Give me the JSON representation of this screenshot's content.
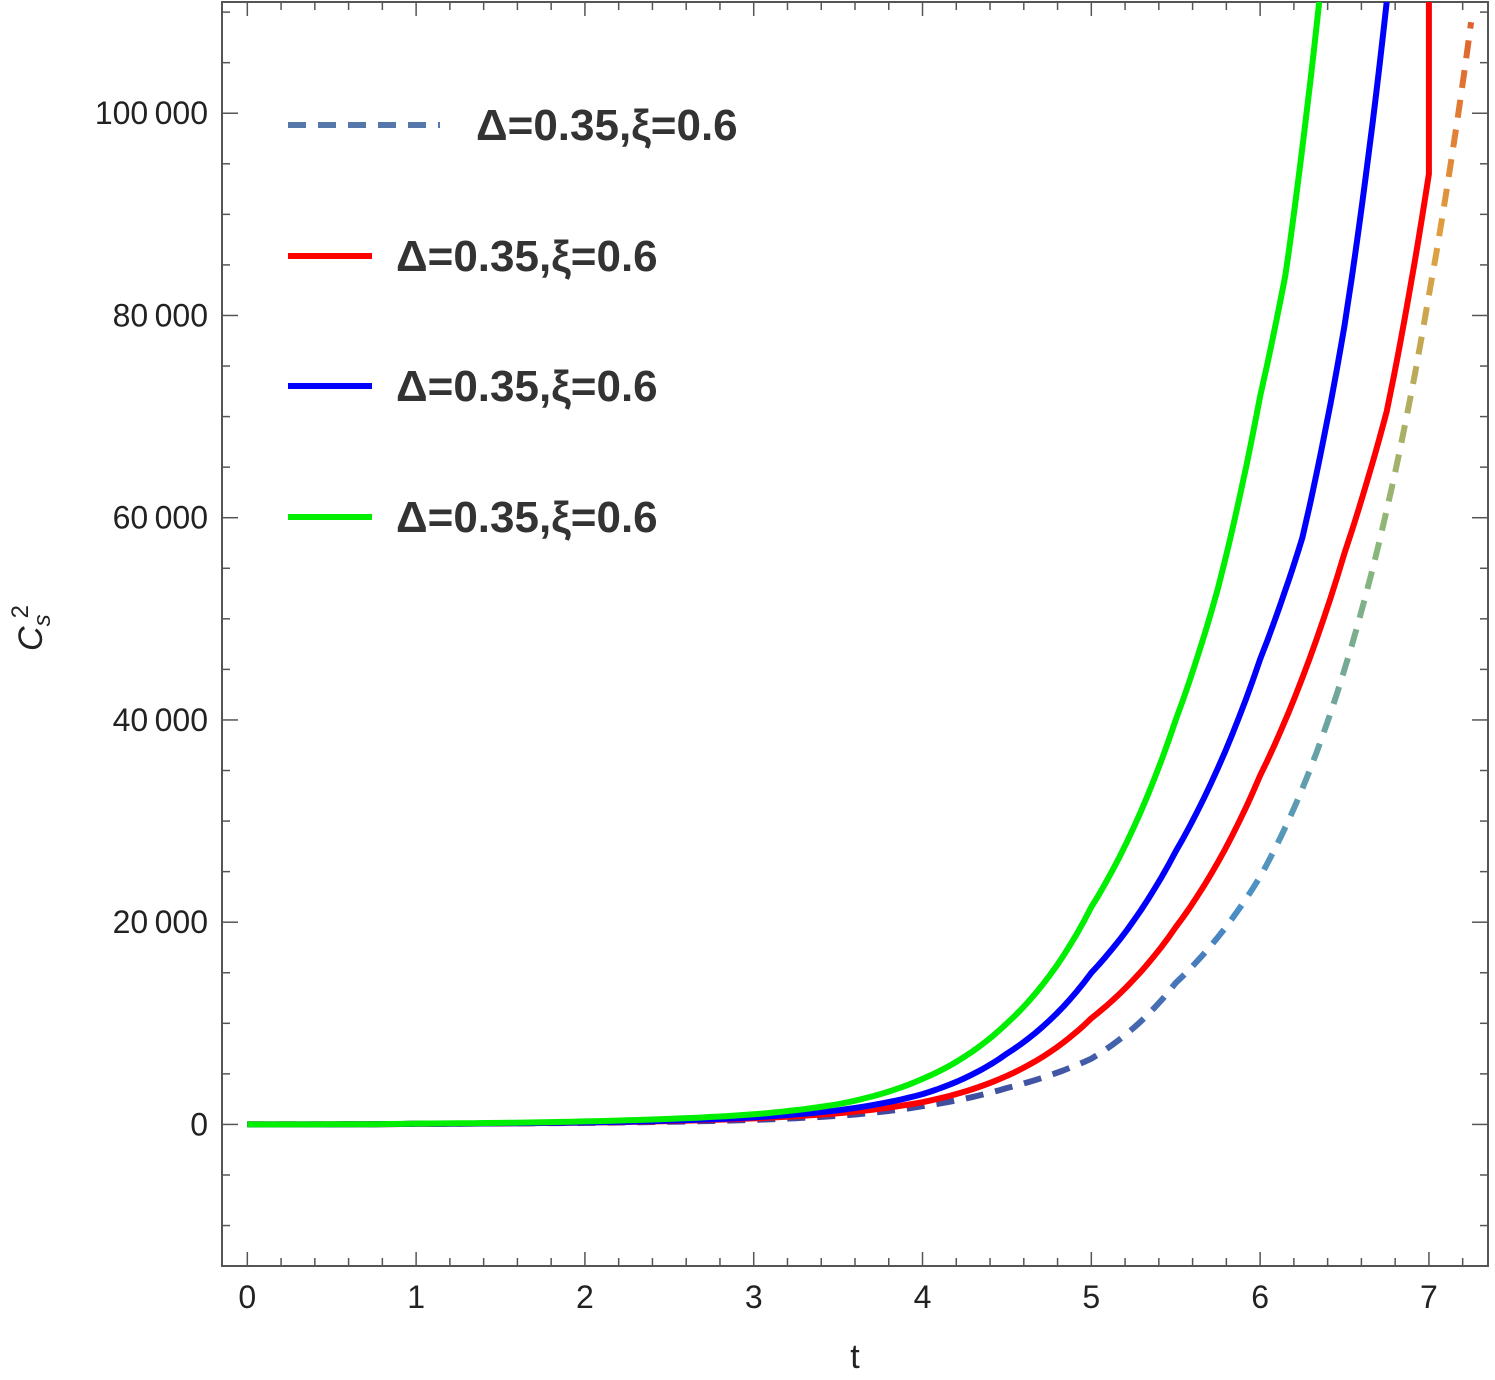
{
  "chart_data": {
    "type": "line",
    "xlabel": "t",
    "ylabel": {
      "base": "C",
      "subscript": "s",
      "superscript": "2"
    },
    "xlim": [
      -0.15,
      7.35
    ],
    "ylim": [
      -14000,
      111000
    ],
    "x_ticks": [
      0,
      1,
      2,
      3,
      4,
      5,
      6,
      7
    ],
    "x_tick_labels": [
      "0",
      "1",
      "2",
      "3",
      "4",
      "5",
      "6",
      "7"
    ],
    "y_ticks": [
      0,
      20000,
      40000,
      60000,
      80000,
      100000
    ],
    "y_tick_labels": [
      "0",
      "20 000",
      "40 000",
      "60 000",
      "80 000",
      "100 000"
    ],
    "grid": false,
    "legend_position": "top-left",
    "series": [
      {
        "name": "Δ=0.35,ξ=0.6",
        "color": "#5577aa",
        "style": "dashed-gradient",
        "gradient": [
          "#3b2a8a",
          "#4a8fc8",
          "#8ab87a",
          "#e0a040",
          "#e05a2a"
        ],
        "x": [
          0,
          1,
          2,
          3,
          3.5,
          4,
          4.5,
          5,
          5.5,
          6,
          6.5,
          7,
          7.25
        ],
        "y": [
          0,
          60,
          150,
          450,
          850,
          1800,
          3600,
          6500,
          14000,
          24500,
          45000,
          82000,
          109000
        ]
      },
      {
        "name": "Δ=0.35,ξ=0.6",
        "color": "#ff0000",
        "style": "solid",
        "x": [
          0,
          1,
          2,
          3,
          3.5,
          4,
          4.5,
          5,
          5.5,
          6,
          6.5,
          6.75,
          7,
          7.0
        ],
        "y": [
          0,
          60,
          180,
          600,
          1100,
          2200,
          4800,
          10500,
          19500,
          34500,
          56500,
          70500,
          94000,
          111000
        ]
      },
      {
        "name": "Δ=0.35,ξ=0.6",
        "color": "#0000ff",
        "style": "solid",
        "x": [
          0,
          1,
          2,
          3,
          3.5,
          4,
          4.5,
          5,
          5.5,
          6,
          6.25,
          6.5,
          6.75
        ],
        "y": [
          0,
          60,
          200,
          700,
          1400,
          3000,
          7000,
          15000,
          27000,
          46000,
          58000,
          79000,
          111000
        ]
      },
      {
        "name": "Δ=0.35,ξ=0.6",
        "color": "#00ee00",
        "style": "solid",
        "x": [
          0,
          1,
          2,
          3,
          3.5,
          4,
          4.5,
          5,
          5.5,
          5.75,
          6,
          6.15,
          6.35
        ],
        "y": [
          0,
          80,
          300,
          1000,
          2000,
          4500,
          10000,
          21500,
          40000,
          53000,
          72000,
          84000,
          111000
        ]
      }
    ]
  }
}
